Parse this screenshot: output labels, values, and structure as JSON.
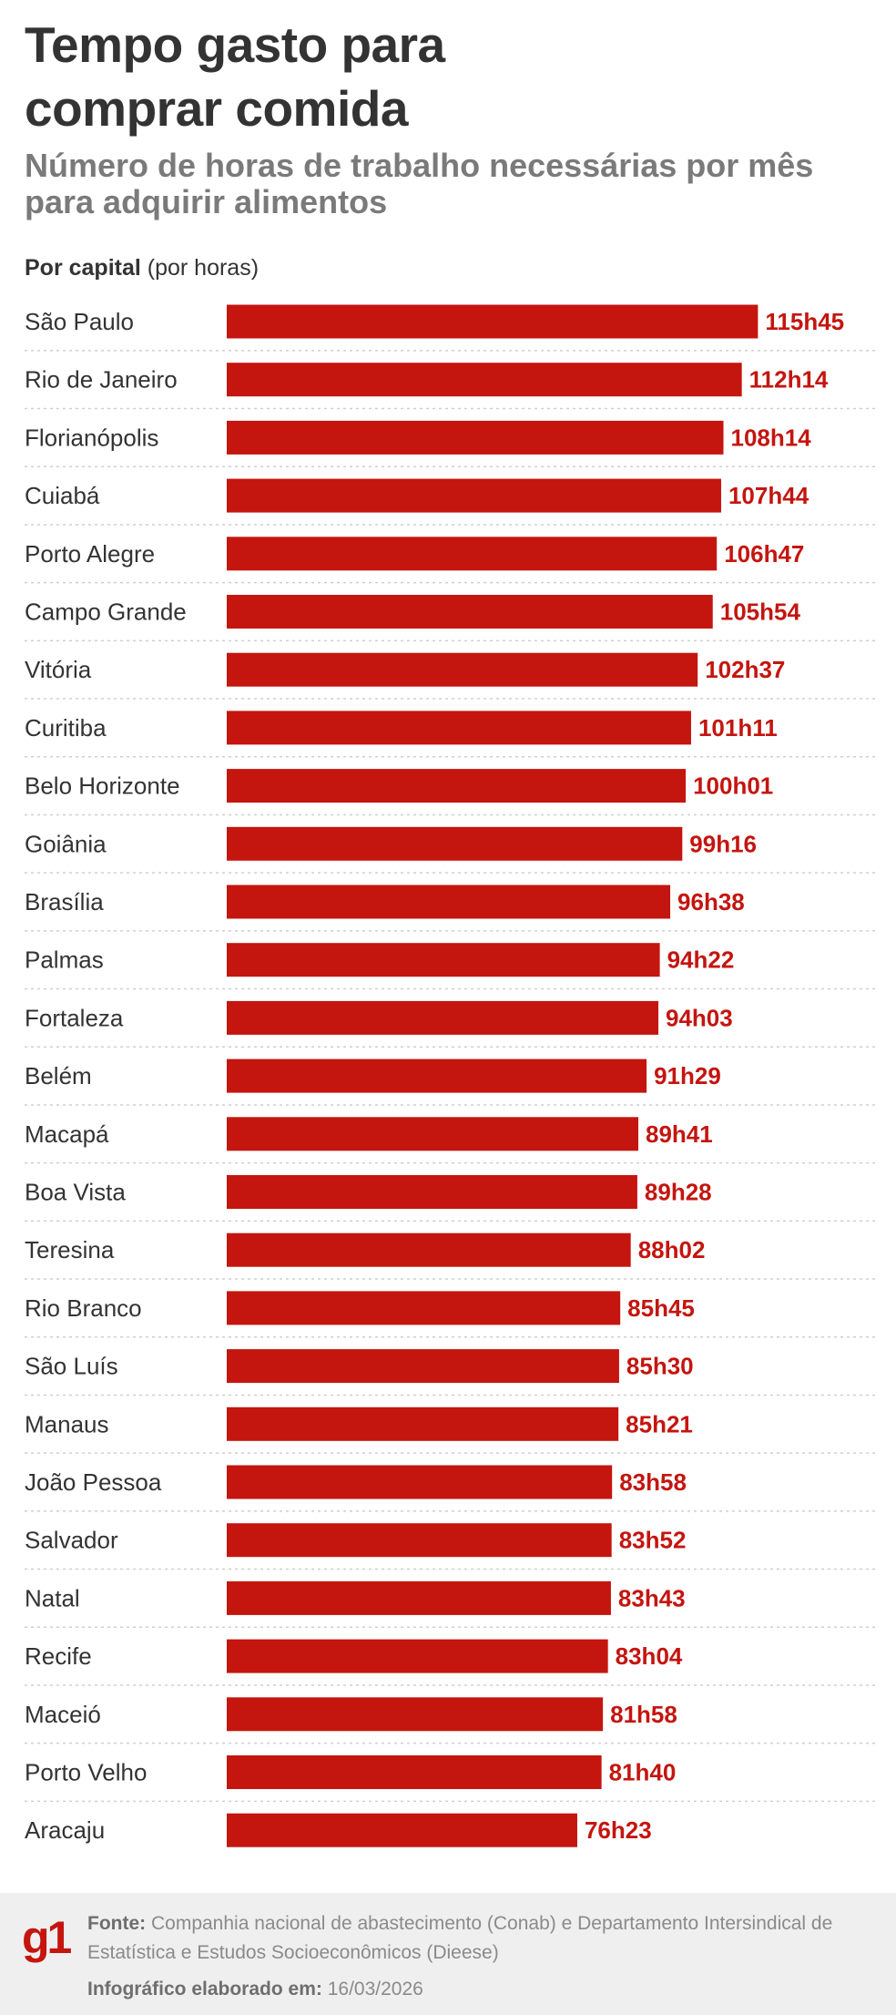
{
  "header": {
    "title": "Tempo gasto para comprar comida",
    "subtitle": "Número de horas de trabalho necessárias por mês para adquirir alimentos",
    "caption_bold": "Por capital",
    "caption_rest": " (por horas)"
  },
  "chart_data": {
    "type": "bar",
    "orientation": "horizontal",
    "title": "Tempo gasto para comprar comida",
    "subtitle": "Número de horas de trabalho necessárias por mês para adquirir alimentos",
    "xlabel": "",
    "ylabel": "",
    "grid": false,
    "bar_color": "#c4150f",
    "categories": [
      "São Paulo",
      "Rio de Janeiro",
      "Florianópolis",
      "Cuiabá",
      "Porto Alegre",
      "Campo Grande",
      "Vitória",
      "Curitiba",
      "Belo Horizonte",
      "Goiânia",
      "Brasília",
      "Palmas",
      "Fortaleza",
      "Belém",
      "Macapá",
      "Boa Vista",
      "Teresina",
      "Rio Branco",
      "São Luís",
      "Manaus",
      "João Pessoa",
      "Salvador",
      "Natal",
      "Recife",
      "Maceió",
      "Porto Velho",
      "Aracaju"
    ],
    "labels": [
      "115h45",
      "112h14",
      "108h14",
      "107h44",
      "106h47",
      "105h54",
      "102h37",
      "101h11",
      "100h01",
      "99h16",
      "96h38",
      "94h22",
      "94h03",
      "91h29",
      "89h41",
      "89h28",
      "88h02",
      "85h45",
      "85h30",
      "85h21",
      "83h58",
      "83h52",
      "83h43",
      "83h04",
      "81h58",
      "81h40",
      "76h23"
    ]
  },
  "footer": {
    "logo": "g1",
    "source_label": "Fonte:",
    "source_text": " Companhia nacional de abastecimento (Conab) e Departamento Intersindical de Estatística e Estudos Socioeconômicos (Dieese)",
    "date_label": "Infográfico elaborado em:",
    "date_value": " 16/03/2026"
  }
}
